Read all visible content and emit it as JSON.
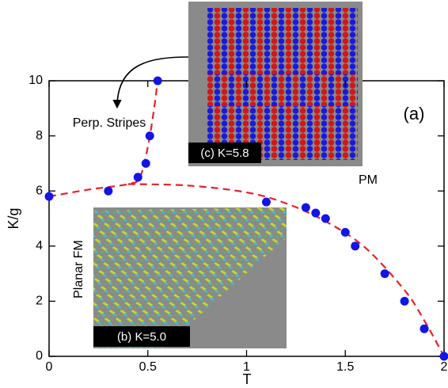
{
  "chart_data": {
    "type": "scatter",
    "xlabel": "T",
    "ylabel": "K/g",
    "xlim": [
      0,
      2
    ],
    "ylim": [
      0,
      10
    ],
    "xticks": [
      0,
      0.5,
      1,
      1.5,
      2
    ],
    "yticks": [
      0,
      2,
      4,
      6,
      8,
      10
    ],
    "color": "#1414e6",
    "x": [
      0,
      0.3,
      0.45,
      0.49,
      0.51,
      0.55,
      1.1,
      1.3,
      1.35,
      1.4,
      1.5,
      1.55,
      1.7,
      1.8,
      1.9,
      2.0
    ],
    "values": [
      5.8,
      6.0,
      6.5,
      7.0,
      8.0,
      10.0,
      5.6,
      5.4,
      5.2,
      5.0,
      4.5,
      4.0,
      3.0,
      2.0,
      1.0,
      0.0
    ],
    "curves": [
      {
        "color": "#e8202a",
        "x": [
          0,
          0.2,
          0.4,
          0.46,
          0.5,
          0.53,
          0.55
        ],
        "values": [
          5.8,
          6.05,
          6.25,
          6.5,
          7.6,
          8.9,
          10
        ]
      },
      {
        "color": "#e8202a",
        "x": [
          0.4,
          0.7,
          1.0,
          1.2,
          1.4,
          1.6,
          1.8,
          1.9,
          2.0
        ],
        "values": [
          6.25,
          6.2,
          5.95,
          5.55,
          4.9,
          3.95,
          2.4,
          1.3,
          0
        ]
      }
    ],
    "annotations": [
      "Perp. Stripes",
      "(a)",
      "PM",
      "Planar FM"
    ],
    "insets": [
      "(c) K=5.8",
      "(b) K=5.0"
    ]
  }
}
